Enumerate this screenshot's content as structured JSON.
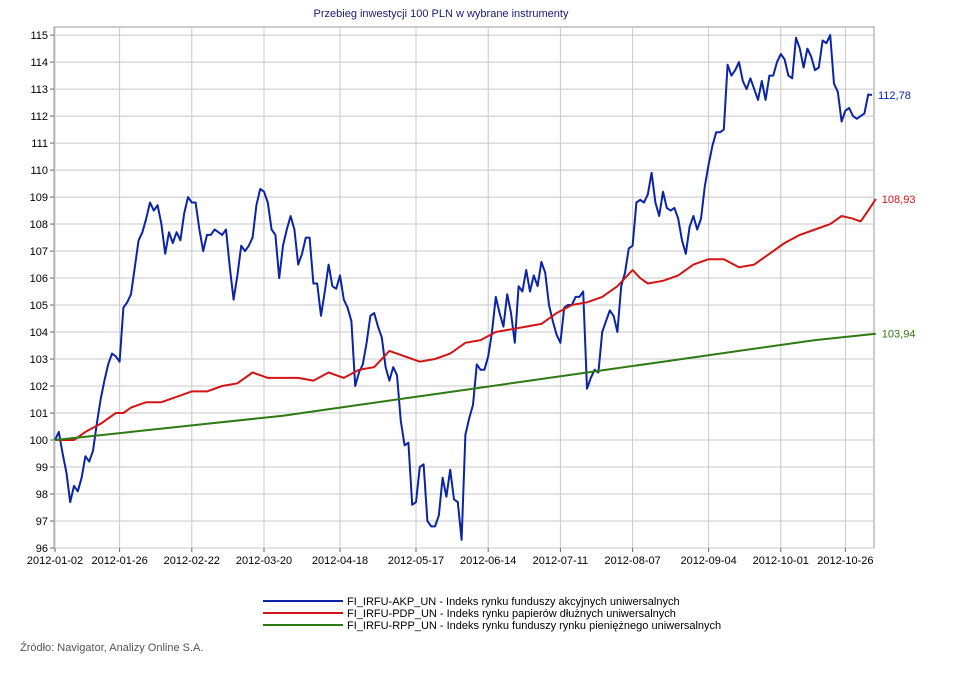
{
  "chart_data": {
    "type": "line",
    "title": "Przebieg inwestycji 100 PLN w wybrane instrumenty",
    "ylim": [
      96,
      115.3
    ],
    "yticks": [
      96,
      97,
      98,
      99,
      100,
      101,
      102,
      103,
      104,
      105,
      106,
      107,
      108,
      109,
      110,
      111,
      112,
      113,
      114,
      115
    ],
    "x_tick_labels": [
      "2012-01-02",
      "2012-01-26",
      "2012-02-22",
      "2012-03-20",
      "2012-04-18",
      "2012-05-17",
      "2012-06-14",
      "2012-07-11",
      "2012-08-07",
      "2012-09-04",
      "2012-10-01",
      "2012-10-26"
    ],
    "x_tick_index": [
      0,
      17,
      36,
      55,
      75,
      95,
      114,
      133,
      152,
      172,
      191,
      208
    ],
    "x_max_index": 211,
    "grid": true,
    "legend_position": "bottom",
    "series": [
      {
        "name": "FI_IRFU-AKP_UN - Indeks rynku funduszy akcyjnych uniwersalnych",
        "color": "#0a24a8",
        "end_label": "112,78",
        "points": [
          [
            0,
            100.0
          ],
          [
            1,
            100.3
          ],
          [
            2,
            99.5
          ],
          [
            3,
            98.8
          ],
          [
            4,
            97.7
          ],
          [
            5,
            98.3
          ],
          [
            6,
            98.1
          ],
          [
            7,
            98.6
          ],
          [
            8,
            99.4
          ],
          [
            9,
            99.2
          ],
          [
            10,
            99.6
          ],
          [
            11,
            100.6
          ],
          [
            12,
            101.5
          ],
          [
            13,
            102.2
          ],
          [
            14,
            102.8
          ],
          [
            15,
            103.2
          ],
          [
            16,
            103.1
          ],
          [
            17,
            102.9
          ],
          [
            18,
            104.9
          ],
          [
            19,
            105.1
          ],
          [
            20,
            105.4
          ],
          [
            21,
            106.4
          ],
          [
            22,
            107.4
          ],
          [
            23,
            107.7
          ],
          [
            24,
            108.2
          ],
          [
            25,
            108.8
          ],
          [
            26,
            108.5
          ],
          [
            27,
            108.7
          ],
          [
            28,
            108.0
          ],
          [
            29,
            106.9
          ],
          [
            30,
            107.7
          ],
          [
            31,
            107.3
          ],
          [
            32,
            107.7
          ],
          [
            33,
            107.4
          ],
          [
            34,
            108.4
          ],
          [
            35,
            109.0
          ],
          [
            36,
            108.8
          ],
          [
            37,
            108.8
          ],
          [
            38,
            107.8
          ],
          [
            39,
            107.0
          ],
          [
            40,
            107.6
          ],
          [
            41,
            107.6
          ],
          [
            42,
            107.8
          ],
          [
            43,
            107.7
          ],
          [
            44,
            107.6
          ],
          [
            45,
            107.8
          ],
          [
            46,
            106.4
          ],
          [
            47,
            105.2
          ],
          [
            48,
            106.1
          ],
          [
            49,
            107.2
          ],
          [
            50,
            107.0
          ],
          [
            51,
            107.2
          ],
          [
            52,
            107.5
          ],
          [
            53,
            108.7
          ],
          [
            54,
            109.3
          ],
          [
            55,
            109.2
          ],
          [
            56,
            108.8
          ],
          [
            57,
            107.8
          ],
          [
            58,
            107.6
          ],
          [
            59,
            106.0
          ],
          [
            60,
            107.2
          ],
          [
            61,
            107.8
          ],
          [
            62,
            108.3
          ],
          [
            63,
            107.8
          ],
          [
            64,
            106.5
          ],
          [
            65,
            106.9
          ],
          [
            66,
            107.5
          ],
          [
            67,
            107.5
          ],
          [
            68,
            105.8
          ],
          [
            69,
            105.8
          ],
          [
            70,
            104.6
          ],
          [
            71,
            105.5
          ],
          [
            72,
            106.5
          ],
          [
            73,
            105.7
          ],
          [
            74,
            105.6
          ],
          [
            75,
            106.1
          ],
          [
            76,
            105.2
          ],
          [
            77,
            104.9
          ],
          [
            78,
            104.4
          ],
          [
            79,
            102.0
          ],
          [
            80,
            102.5
          ],
          [
            81,
            102.8
          ],
          [
            82,
            103.6
          ],
          [
            83,
            104.6
          ],
          [
            84,
            104.7
          ],
          [
            85,
            104.2
          ],
          [
            86,
            103.8
          ],
          [
            87,
            102.7
          ],
          [
            88,
            102.2
          ],
          [
            89,
            102.7
          ],
          [
            90,
            102.4
          ],
          [
            91,
            100.7
          ],
          [
            92,
            99.8
          ],
          [
            93,
            99.9
          ],
          [
            94,
            97.6
          ],
          [
            95,
            97.7
          ],
          [
            96,
            99.0
          ],
          [
            97,
            99.1
          ],
          [
            98,
            97.0
          ],
          [
            99,
            96.8
          ],
          [
            100,
            96.8
          ],
          [
            101,
            97.2
          ],
          [
            102,
            98.6
          ],
          [
            103,
            97.9
          ],
          [
            104,
            98.9
          ],
          [
            105,
            97.8
          ],
          [
            106,
            97.7
          ],
          [
            107,
            96.3
          ],
          [
            108,
            100.2
          ],
          [
            109,
            100.8
          ],
          [
            110,
            101.3
          ],
          [
            111,
            102.8
          ],
          [
            112,
            102.6
          ],
          [
            113,
            102.6
          ],
          [
            114,
            103.1
          ],
          [
            115,
            104.0
          ],
          [
            116,
            105.3
          ],
          [
            117,
            104.7
          ],
          [
            118,
            104.2
          ],
          [
            119,
            105.4
          ],
          [
            120,
            104.7
          ],
          [
            121,
            103.6
          ],
          [
            122,
            105.7
          ],
          [
            123,
            105.5
          ],
          [
            124,
            106.3
          ],
          [
            125,
            105.5
          ],
          [
            126,
            106.1
          ],
          [
            127,
            105.7
          ],
          [
            128,
            106.6
          ],
          [
            129,
            106.2
          ],
          [
            130,
            105.0
          ],
          [
            131,
            104.4
          ],
          [
            132,
            103.9
          ],
          [
            133,
            103.6
          ],
          [
            134,
            104.9
          ],
          [
            135,
            105.0
          ],
          [
            136,
            105.0
          ],
          [
            137,
            105.3
          ],
          [
            138,
            105.3
          ],
          [
            139,
            105.5
          ],
          [
            140,
            101.9
          ],
          [
            141,
            102.3
          ],
          [
            142,
            102.6
          ],
          [
            143,
            102.5
          ],
          [
            144,
            104.0
          ],
          [
            145,
            104.4
          ],
          [
            146,
            104.8
          ],
          [
            147,
            104.6
          ],
          [
            148,
            104.0
          ],
          [
            149,
            105.7
          ],
          [
            150,
            106.2
          ],
          [
            151,
            107.1
          ],
          [
            152,
            107.2
          ],
          [
            153,
            108.8
          ],
          [
            154,
            108.9
          ],
          [
            155,
            108.8
          ],
          [
            156,
            109.1
          ],
          [
            157,
            109.9
          ],
          [
            158,
            108.8
          ],
          [
            159,
            108.3
          ],
          [
            160,
            109.2
          ],
          [
            161,
            108.6
          ],
          [
            162,
            108.5
          ],
          [
            163,
            108.6
          ],
          [
            164,
            108.2
          ],
          [
            165,
            107.4
          ],
          [
            166,
            106.9
          ],
          [
            167,
            107.9
          ],
          [
            168,
            108.3
          ],
          [
            169,
            107.8
          ],
          [
            170,
            108.2
          ],
          [
            171,
            109.4
          ],
          [
            172,
            110.2
          ],
          [
            173,
            110.9
          ],
          [
            174,
            111.4
          ],
          [
            175,
            111.4
          ],
          [
            176,
            111.5
          ],
          [
            177,
            113.9
          ],
          [
            178,
            113.5
          ],
          [
            179,
            113.7
          ],
          [
            180,
            114.0
          ],
          [
            181,
            113.3
          ],
          [
            182,
            113.0
          ],
          [
            183,
            113.4
          ],
          [
            184,
            113.0
          ],
          [
            185,
            112.6
          ],
          [
            186,
            113.3
          ],
          [
            187,
            112.6
          ],
          [
            188,
            113.5
          ],
          [
            189,
            113.5
          ],
          [
            190,
            114.0
          ],
          [
            191,
            114.3
          ],
          [
            192,
            114.1
          ],
          [
            193,
            113.5
          ],
          [
            194,
            113.4
          ],
          [
            195,
            114.9
          ],
          [
            196,
            114.5
          ],
          [
            197,
            113.8
          ],
          [
            198,
            114.5
          ],
          [
            199,
            114.2
          ],
          [
            200,
            113.7
          ],
          [
            201,
            113.8
          ],
          [
            202,
            114.8
          ],
          [
            203,
            114.7
          ],
          [
            204,
            115.0
          ],
          [
            205,
            113.2
          ],
          [
            206,
            112.9
          ],
          [
            207,
            111.8
          ],
          [
            208,
            112.2
          ],
          [
            209,
            112.3
          ],
          [
            210,
            112.0
          ],
          [
            211,
            111.9
          ],
          [
            212,
            112.0
          ],
          [
            213,
            112.1
          ],
          [
            214,
            112.8
          ],
          [
            215,
            112.78
          ]
        ]
      },
      {
        "name": "FI_IRFU-PDP_UN - Indeks rynku papierów dłużnych uniwersalnych",
        "color": "#d41414",
        "end_label": "108,93",
        "points": [
          [
            0,
            100.0
          ],
          [
            5,
            100.0
          ],
          [
            8,
            100.3
          ],
          [
            12,
            100.6
          ],
          [
            16,
            101.0
          ],
          [
            18,
            101.0
          ],
          [
            20,
            101.2
          ],
          [
            24,
            101.4
          ],
          [
            28,
            101.4
          ],
          [
            32,
            101.6
          ],
          [
            36,
            101.8
          ],
          [
            40,
            101.8
          ],
          [
            44,
            102.0
          ],
          [
            48,
            102.1
          ],
          [
            52,
            102.5
          ],
          [
            56,
            102.3
          ],
          [
            60,
            102.3
          ],
          [
            64,
            102.3
          ],
          [
            68,
            102.2
          ],
          [
            72,
            102.5
          ],
          [
            76,
            102.3
          ],
          [
            80,
            102.6
          ],
          [
            84,
            102.7
          ],
          [
            88,
            103.3
          ],
          [
            92,
            103.1
          ],
          [
            96,
            102.9
          ],
          [
            100,
            103.0
          ],
          [
            104,
            103.2
          ],
          [
            108,
            103.6
          ],
          [
            112,
            103.7
          ],
          [
            116,
            104.0
          ],
          [
            120,
            104.1
          ],
          [
            124,
            104.2
          ],
          [
            128,
            104.3
          ],
          [
            132,
            104.7
          ],
          [
            136,
            105.0
          ],
          [
            140,
            105.1
          ],
          [
            144,
            105.3
          ],
          [
            148,
            105.7
          ],
          [
            150,
            106.0
          ],
          [
            152,
            106.3
          ],
          [
            154,
            106.0
          ],
          [
            156,
            105.8
          ],
          [
            160,
            105.9
          ],
          [
            164,
            106.1
          ],
          [
            168,
            106.5
          ],
          [
            172,
            106.7
          ],
          [
            176,
            106.7
          ],
          [
            180,
            106.4
          ],
          [
            184,
            106.5
          ],
          [
            188,
            106.9
          ],
          [
            192,
            107.3
          ],
          [
            196,
            107.6
          ],
          [
            200,
            107.8
          ],
          [
            204,
            108.0
          ],
          [
            207,
            108.3
          ],
          [
            210,
            108.2
          ],
          [
            212,
            108.1
          ],
          [
            214,
            108.5
          ],
          [
            216,
            108.93
          ]
        ]
      },
      {
        "name": "FI_IRFU-RPP_UN - Indeks rynku funduszy rynku pieniężnego uniwersalnych",
        "color": "#2e7a12",
        "end_label": "103,94",
        "points": [
          [
            0,
            100.0
          ],
          [
            20,
            100.3
          ],
          [
            40,
            100.6
          ],
          [
            60,
            100.9
          ],
          [
            80,
            101.3
          ],
          [
            100,
            101.7
          ],
          [
            120,
            102.1
          ],
          [
            140,
            102.5
          ],
          [
            160,
            102.9
          ],
          [
            180,
            103.3
          ],
          [
            200,
            103.7
          ],
          [
            216,
            103.94
          ]
        ]
      }
    ]
  },
  "source_text": "Źródło: Navigator, Analizy Online S.A."
}
